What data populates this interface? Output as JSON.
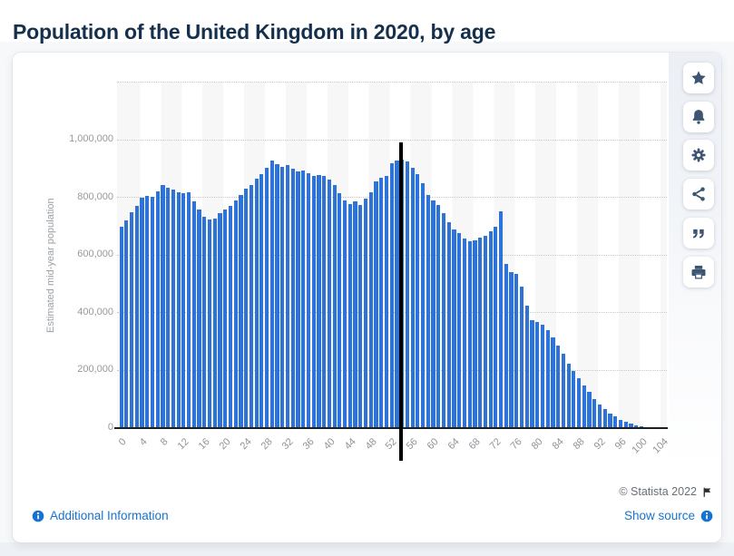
{
  "header": {
    "title": "Population of the United Kingdom in 2020, by age"
  },
  "chart_data": {
    "type": "bar",
    "title": "Population of the United Kingdom in 2020, by age",
    "xlabel": "",
    "ylabel": "Estimated mid-year population",
    "ylim": [
      0,
      1200000
    ],
    "grid": true,
    "legend": "none",
    "bar_color": "#2e74d8",
    "marker": {
      "age": 54,
      "color": "#000000"
    },
    "x_tick_step": 4,
    "y_ticks": [
      0,
      200000,
      400000,
      600000,
      800000,
      1000000
    ],
    "y_gridlines": [
      200000,
      400000,
      600000,
      800000,
      1000000,
      1200000
    ],
    "categories": [
      0,
      1,
      2,
      3,
      4,
      5,
      6,
      7,
      8,
      9,
      10,
      11,
      12,
      13,
      14,
      15,
      16,
      17,
      18,
      19,
      20,
      21,
      22,
      23,
      24,
      25,
      26,
      27,
      28,
      29,
      30,
      31,
      32,
      33,
      34,
      35,
      36,
      37,
      38,
      39,
      40,
      41,
      42,
      43,
      44,
      45,
      46,
      47,
      48,
      49,
      50,
      51,
      52,
      53,
      54,
      55,
      56,
      57,
      58,
      59,
      60,
      61,
      62,
      63,
      64,
      65,
      66,
      67,
      68,
      69,
      70,
      71,
      72,
      73,
      74,
      75,
      76,
      77,
      78,
      79,
      80,
      81,
      82,
      83,
      84,
      85,
      86,
      87,
      88,
      89,
      90,
      91,
      92,
      93,
      94,
      95,
      96,
      97,
      98,
      99,
      100,
      101,
      102,
      103,
      104
    ],
    "values": [
      700000,
      722000,
      750000,
      772000,
      800000,
      806000,
      802000,
      822000,
      843000,
      835000,
      828000,
      820000,
      815000,
      818000,
      788000,
      760000,
      735000,
      724000,
      727000,
      745000,
      758000,
      772000,
      790000,
      808000,
      832000,
      845000,
      865000,
      882000,
      905000,
      928000,
      918000,
      908000,
      912000,
      900000,
      892000,
      895000,
      885000,
      875000,
      878000,
      875000,
      862000,
      845000,
      815000,
      792000,
      778000,
      788000,
      775000,
      798000,
      820000,
      858000,
      870000,
      875000,
      920000,
      928000,
      932000,
      925000,
      905000,
      883000,
      850000,
      810000,
      790000,
      775000,
      745000,
      715000,
      690000,
      678000,
      658000,
      650000,
      653000,
      660000,
      668000,
      682000,
      700000,
      752000,
      570000,
      542000,
      535000,
      490000,
      425000,
      375000,
      370000,
      360000,
      340000,
      315000,
      287000,
      257000,
      223000,
      197000,
      173000,
      147000,
      126000,
      101000,
      83000,
      67000,
      52000,
      40000,
      29000,
      21000,
      15000,
      10000,
      7000,
      4000,
      3000,
      2000,
      1000
    ]
  },
  "toolbar": {
    "buttons": [
      {
        "name": "favorite",
        "icon": "star-icon"
      },
      {
        "name": "alerts",
        "icon": "bell-icon"
      },
      {
        "name": "settings",
        "icon": "gear-icon"
      },
      {
        "name": "share",
        "icon": "share-icon"
      },
      {
        "name": "cite",
        "icon": "quote-icon"
      },
      {
        "name": "print",
        "icon": "printer-icon"
      }
    ]
  },
  "footer": {
    "copyright": "© Statista 2022",
    "flag_icon": "flag-icon",
    "info_icon": "info-icon",
    "additional_info_label": "Additional Information",
    "show_source_label": "Show source"
  },
  "colors": {
    "title_navy": "#15304d",
    "link_blue": "#1673d1",
    "bar_blue": "#2e74d8",
    "icon_slate": "#3d5572"
  }
}
